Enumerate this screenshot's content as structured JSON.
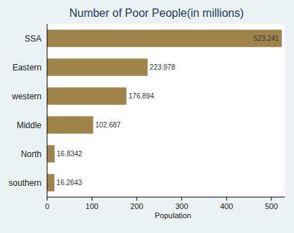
{
  "chart_data": {
    "type": "bar",
    "orientation": "horizontal",
    "title": "Number of Poor People(in millions)",
    "categories": [
      "SSA",
      "Eastern",
      "western",
      "Middle",
      "North",
      "southern"
    ],
    "values": [
      523.241,
      223.978,
      176.894,
      102.687,
      16.8342,
      16.2643
    ],
    "color": "#a0844c",
    "xlabel": "Population",
    "xlim": [
      0,
      530
    ],
    "xticks": [
      0,
      100,
      200,
      300,
      400,
      500
    ],
    "grid": false,
    "data_labels": true
  }
}
